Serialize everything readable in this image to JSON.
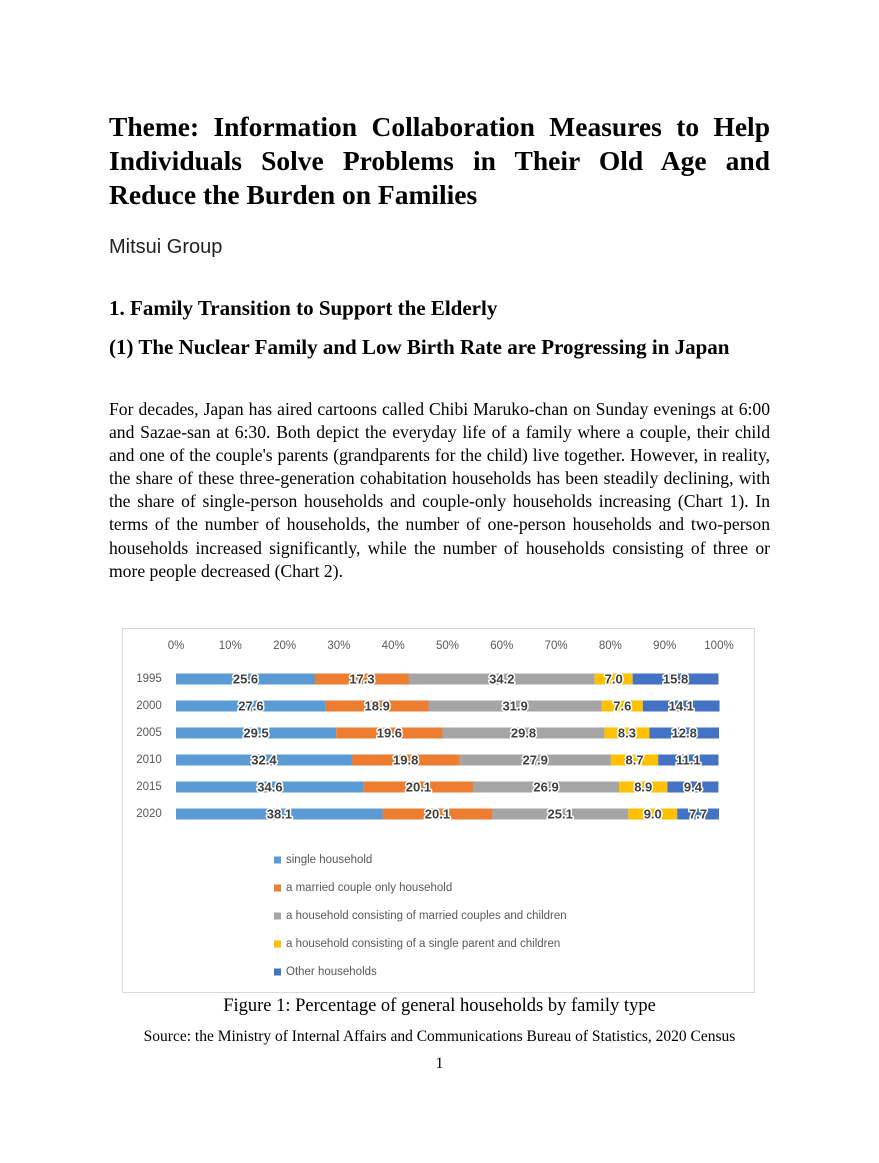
{
  "title": "Theme: Information Collaboration Measures to Help Individuals Solve Problems in Their Old Age and Reduce the Burden on Families",
  "author": "Mitsui Group",
  "section_heading": "1. Family Transition to Support the Elderly",
  "subsection_heading": "(1) The Nuclear Family and Low Birth Rate are Progressing in Japan",
  "paragraph": "For decades, Japan has aired cartoons called Chibi Maruko-chan on Sunday evenings at 6:00 and Sazae-san at 6:30. Both depict the everyday life of a family where a couple, their child and one of the couple's parents (grandparents for the child) live together. However, in reality, the share of these three-generation cohabitation households has been steadily declining, with the share of single-person households and couple-only households increasing (Chart 1). In terms of the number of households, the number of one-person households and two-person households increased significantly, while the number of households consisting of three or more people decreased (Chart 2).",
  "chart_data": {
    "type": "stacked-bar-horizontal",
    "categories": [
      "1995",
      "2000",
      "2005",
      "2010",
      "2015",
      "2020"
    ],
    "series": [
      {
        "name": "single household",
        "color": "#5b9bd5",
        "values": [
          25.6,
          27.6,
          29.5,
          32.4,
          34.6,
          38.1
        ]
      },
      {
        "name": "a married couple only household",
        "color": "#ed7d31",
        "values": [
          17.3,
          18.9,
          19.6,
          19.8,
          20.1,
          20.1
        ]
      },
      {
        "name": "a household consisting of married couples and children",
        "color": "#a5a5a5",
        "values": [
          34.2,
          31.9,
          29.8,
          27.9,
          26.9,
          25.1
        ]
      },
      {
        "name": "a household consisting of a single parent and children",
        "color": "#ffc000",
        "values": [
          7.0,
          7.6,
          8.3,
          8.7,
          8.9,
          9.0
        ],
        "value_labels": [
          "7.0",
          "7.6",
          "8.3",
          "8.7",
          "8.9",
          "9.0"
        ]
      },
      {
        "name": "Other households",
        "color": "#4472c4",
        "values": [
          15.8,
          14.1,
          12.8,
          11.1,
          9.4,
          7.7
        ]
      }
    ],
    "xlim": [
      0,
      100
    ],
    "xticks": [
      {
        "value": 0,
        "label": "0%"
      },
      {
        "value": 10,
        "label": "10%"
      },
      {
        "value": 20,
        "label": "20%"
      },
      {
        "value": 30,
        "label": "30%"
      },
      {
        "value": 40,
        "label": "40%"
      },
      {
        "value": 50,
        "label": "50%"
      },
      {
        "value": 60,
        "label": "60%"
      },
      {
        "value": 70,
        "label": "70%"
      },
      {
        "value": 80,
        "label": "80%"
      },
      {
        "value": 90,
        "label": "90%"
      },
      {
        "value": 100,
        "label": "100%"
      }
    ],
    "grid": false,
    "legend": "bottom"
  },
  "caption": "Figure 1: Percentage of general households by family type",
  "source": "Source: the Ministry of Internal Affairs and Communications Bureau of Statistics, 2020 Census",
  "page_number": "1"
}
